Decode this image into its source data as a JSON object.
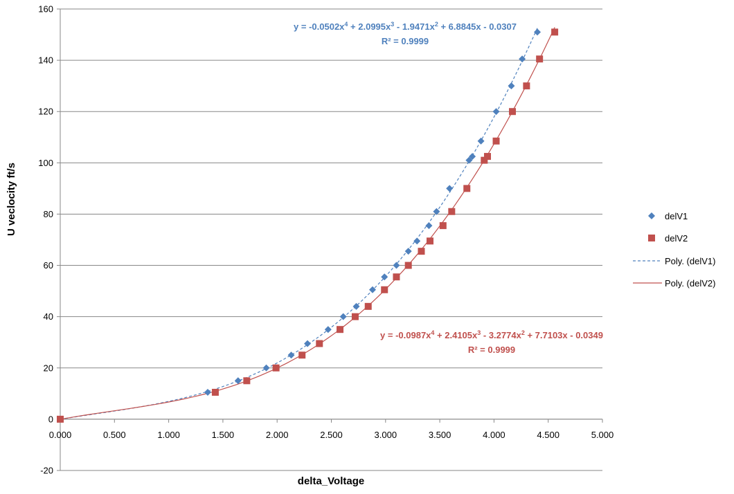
{
  "chart_data": {
    "type": "scatter",
    "xlabel": "delta_Voltage",
    "ylabel": "U veclocity ft/s",
    "xlim": [
      0,
      5
    ],
    "ylim": [
      -20,
      160
    ],
    "x_ticks": [
      "0.000",
      "0.500",
      "1.000",
      "1.500",
      "2.000",
      "2.500",
      "3.000",
      "3.500",
      "4.000",
      "4.500",
      "5.000"
    ],
    "x_tick_values": [
      0,
      0.5,
      1,
      1.5,
      2,
      2.5,
      3,
      3.5,
      4,
      4.5,
      5
    ],
    "y_ticks": [
      "-20",
      "0",
      "20",
      "40",
      "60",
      "80",
      "100",
      "120",
      "140",
      "160"
    ],
    "y_tick_values": [
      -20,
      0,
      20,
      40,
      60,
      80,
      100,
      120,
      140,
      160
    ],
    "grid": "horizontal",
    "legend_position": "right",
    "series": [
      {
        "name": "delV1",
        "marker": "diamond",
        "color": "#4F81BD",
        "x": [
          0.0,
          1.36,
          1.64,
          1.9,
          2.13,
          2.28,
          2.47,
          2.61,
          2.73,
          2.88,
          2.99,
          3.1,
          3.21,
          3.29,
          3.4,
          3.47,
          3.59,
          3.77,
          3.8,
          3.88,
          4.02,
          4.16,
          4.26,
          4.4
        ],
        "y": [
          0,
          10.5,
          15,
          20,
          25,
          29.5,
          35,
          40,
          44,
          50.5,
          55.5,
          60,
          65.5,
          69.5,
          75.5,
          81,
          90,
          101,
          102.5,
          108.5,
          120,
          130,
          140.5,
          151
        ]
      },
      {
        "name": "delV2",
        "marker": "square",
        "color": "#C0504D",
        "x": [
          0.0,
          1.43,
          1.72,
          1.99,
          2.23,
          2.39,
          2.58,
          2.72,
          2.84,
          2.99,
          3.1,
          3.21,
          3.33,
          3.41,
          3.53,
          3.61,
          3.75,
          3.91,
          3.94,
          4.02,
          4.17,
          4.3,
          4.42,
          4.56
        ],
        "y": [
          0,
          10.5,
          15,
          20,
          25,
          29.5,
          35,
          40,
          44,
          50.5,
          55.5,
          60,
          65.5,
          69.5,
          75.5,
          81,
          90,
          101,
          102.5,
          108.5,
          120,
          130,
          140.5,
          151
        ]
      }
    ],
    "trendlines": [
      {
        "name": "Poly. (delV1)",
        "series": "delV1",
        "style": "dashed",
        "color": "#4F81BD",
        "coefficients": [
          -0.0502,
          2.0995,
          -1.9471,
          6.8845,
          -0.0307
        ],
        "x_range": [
          0,
          4.4
        ],
        "equation_parts": [
          "y = -0.0502x",
          "4",
          " + 2.0995x",
          "3",
          " - 1.9471x",
          "2",
          " + 6.8845x - 0.0307"
        ],
        "r_squared": "R² = 0.9999"
      },
      {
        "name": "Poly. (delV2)",
        "series": "delV2",
        "style": "solid",
        "color": "#C0504D",
        "coefficients": [
          -0.0987,
          2.4105,
          -3.2774,
          7.7103,
          -0.0349
        ],
        "x_range": [
          0,
          4.56
        ],
        "equation_parts": [
          "y = -0.0987x",
          "4",
          " + 2.4105x",
          "3",
          " - 3.2774x",
          "2",
          " + 7.7103x - 0.0349"
        ],
        "r_squared": "R² = 0.9999"
      }
    ],
    "legend": [
      "delV1",
      "delV2",
      "Poly. (delV1)",
      "Poly. (delV2)"
    ]
  }
}
